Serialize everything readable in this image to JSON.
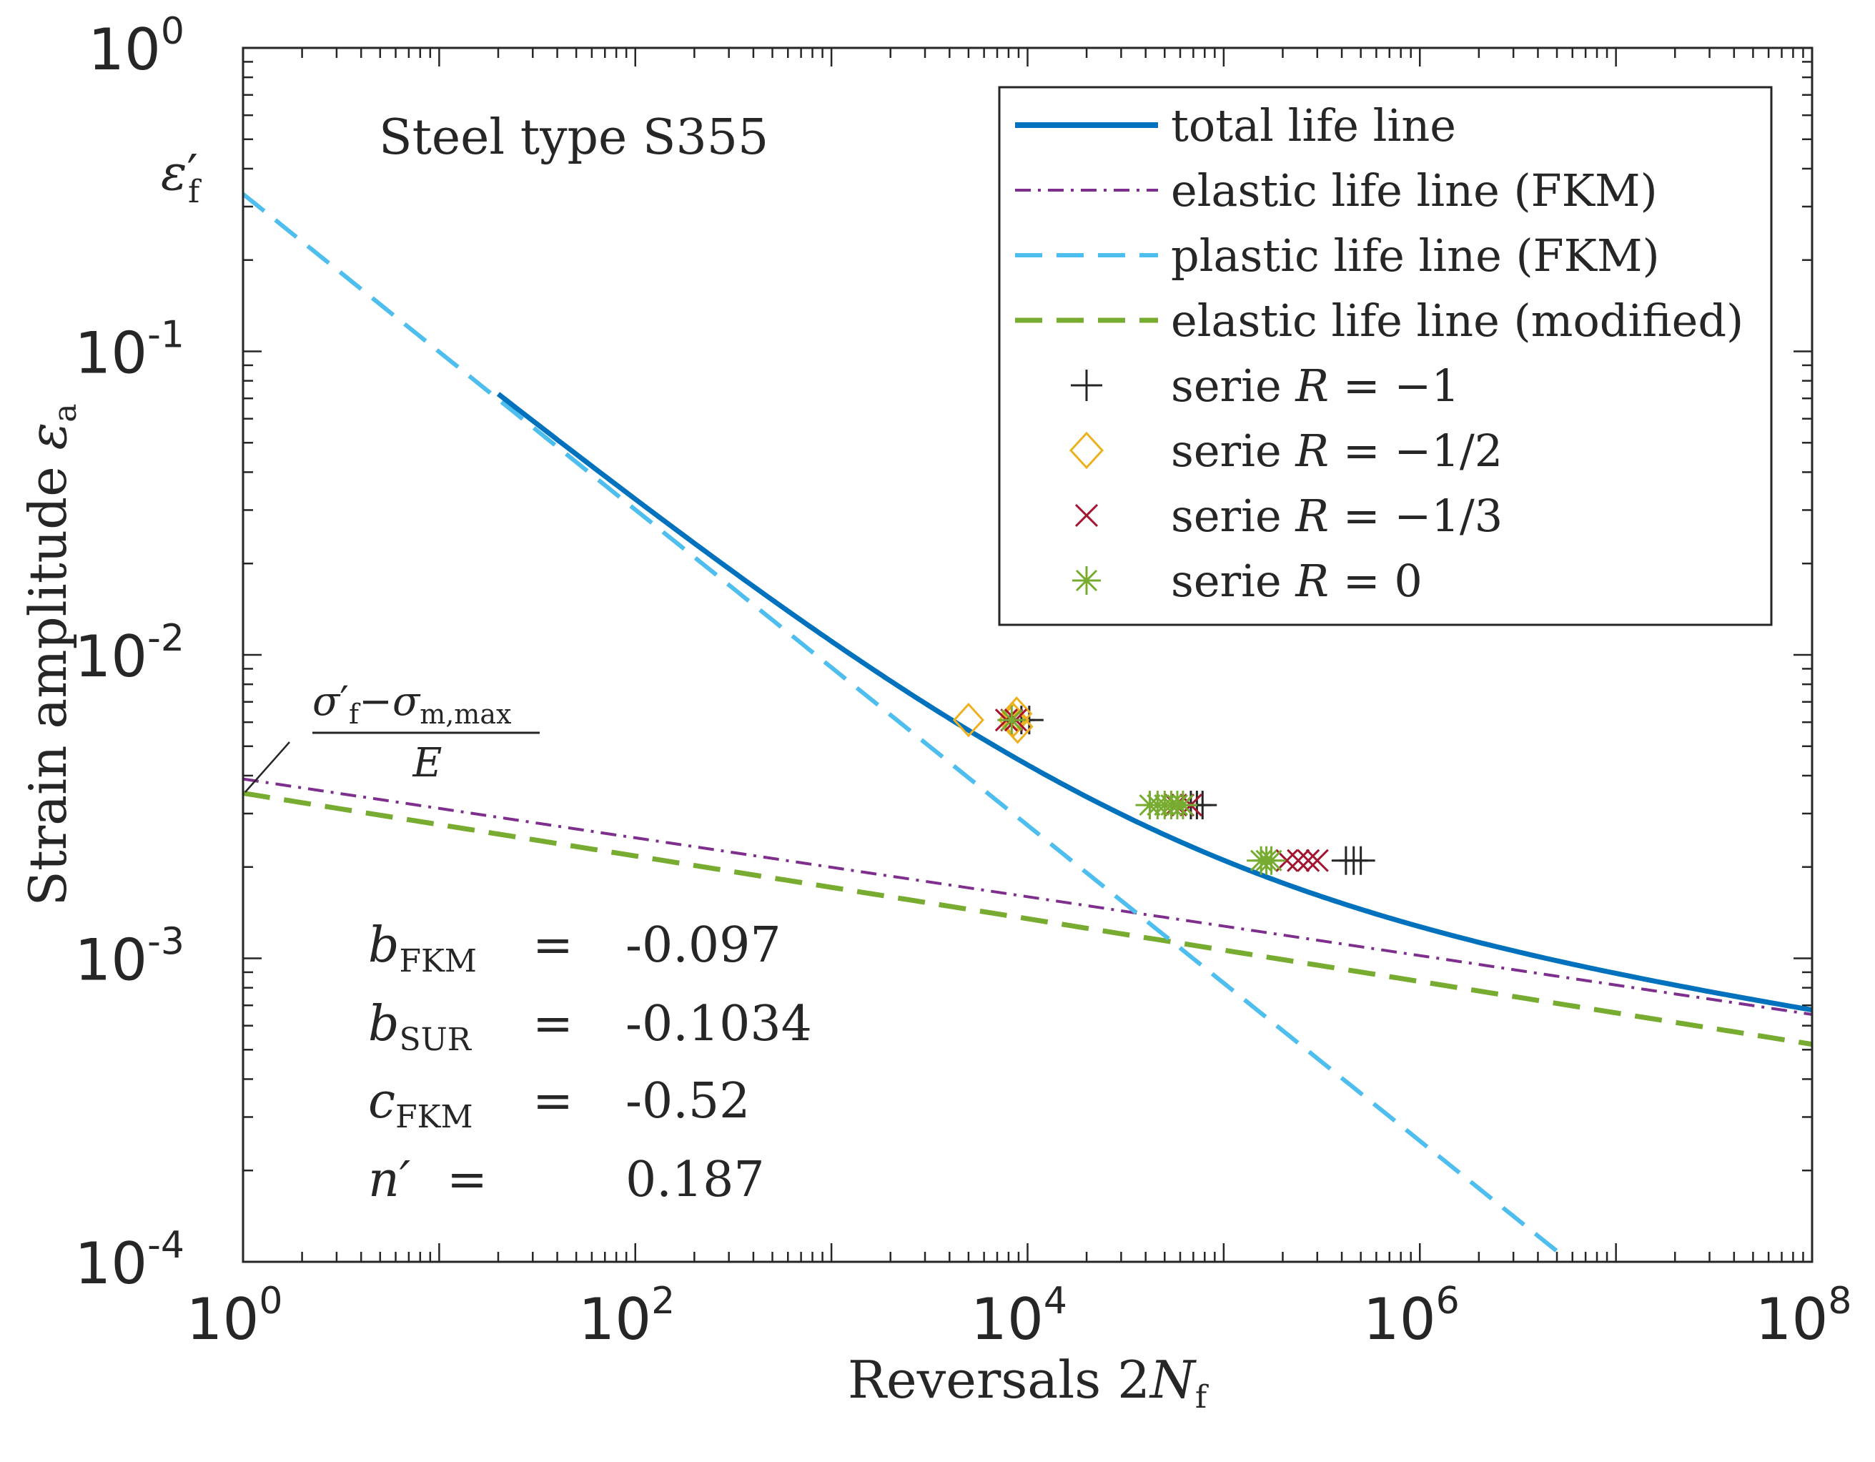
{
  "chart_data": {
    "type": "line",
    "scale": "log-log",
    "xlabel": "Reversals 2N_f",
    "xlabel_text": "Reversals 2",
    "xlabel_var": "N",
    "xlabel_sub": "f",
    "ylabel": "Strain amplitude ε_a",
    "ylabel_text": "Strain amplitude ",
    "ylabel_var": "ε",
    "ylabel_sub": "a",
    "xlim": [
      1,
      100000000
    ],
    "ylim": [
      0.0001,
      1
    ],
    "x_ticks": [
      {
        "value": 1,
        "base": "10",
        "exp": "0"
      },
      {
        "value": 100,
        "base": "10",
        "exp": "2"
      },
      {
        "value": 10000,
        "base": "10",
        "exp": "4"
      },
      {
        "value": 1000000,
        "base": "10",
        "exp": "6"
      },
      {
        "value": 100000000,
        "base": "10",
        "exp": "8"
      }
    ],
    "y_ticks": [
      {
        "value": 1,
        "base": "10",
        "exp": "0"
      },
      {
        "value": 0.1,
        "base": "10",
        "exp": "-1"
      },
      {
        "value": 0.01,
        "base": "10",
        "exp": "-2"
      },
      {
        "value": 0.001,
        "base": "10",
        "exp": "-3"
      },
      {
        "value": 0.0001,
        "base": "10",
        "exp": "-4"
      }
    ],
    "title_annotation": "Steel type S355",
    "eps_f_label": {
      "symbol": "ε",
      "prime": "′",
      "sub": "f",
      "value": 0.33
    },
    "intercept_label": {
      "sigma": "σ",
      "prime": "′",
      "sub_f": "f",
      "minus": "−",
      "sigma2": "σ",
      "sub_m": "m,max",
      "denominator": "E",
      "value": 0.0035
    },
    "params": [
      {
        "symbol": "b",
        "sub": "FKM",
        "eq": "=",
        "value": "-0.097"
      },
      {
        "symbol": "b",
        "sub": "SUR",
        "eq": "=",
        "value": "-0.1034"
      },
      {
        "symbol": "c",
        "sub": "FKM",
        "eq": "=",
        "value": "-0.52"
      },
      {
        "symbol": "n′",
        "sub": "",
        "eq": "=",
        "value": "0.187"
      }
    ],
    "lines": [
      {
        "name": "total life line",
        "color": "#0072BD",
        "style": "solid",
        "x_range": [
          20,
          100000000
        ],
        "components": [
          {
            "coef": 0.0039,
            "exp": -0.097
          },
          {
            "coef": 0.33,
            "exp": -0.52
          }
        ]
      },
      {
        "name": "elastic life line (FKM)",
        "color": "#7E2F8E",
        "style": "dashdot",
        "x_range": [
          1,
          100000000
        ],
        "components": [
          {
            "coef": 0.0039,
            "exp": -0.097
          }
        ]
      },
      {
        "name": "plastic life line (FKM)",
        "color": "#4DBEEE",
        "style": "dashed",
        "x_range": [
          1,
          5600000
        ],
        "components": [
          {
            "coef": 0.33,
            "exp": -0.52
          }
        ]
      },
      {
        "name": "elastic life line (modified)",
        "color": "#77AC30",
        "style": "dashed",
        "x_range": [
          1,
          100000000
        ],
        "components": [
          {
            "coef": 0.0035,
            "exp": -0.1034
          }
        ]
      }
    ],
    "series": [
      {
        "name": "serie R = −1",
        "label_text": "serie ",
        "label_var": "R",
        "label_rest": " = −1",
        "marker": "plus",
        "color": "#262626",
        "points": [
          [
            9300,
            0.0061
          ],
          [
            10200,
            0.0061
          ],
          [
            68000,
            0.0032
          ],
          [
            73000,
            0.0032
          ],
          [
            78000,
            0.0032
          ],
          [
            420000,
            0.0021
          ],
          [
            460000,
            0.0021
          ],
          [
            500000,
            0.0021
          ]
        ]
      },
      {
        "name": "serie R = −1/2",
        "label_text": "serie ",
        "label_var": "R",
        "label_rest": " = −1/2",
        "marker": "diamond",
        "color": "#EDB120",
        "points": [
          [
            5000,
            0.0061
          ],
          [
            8500,
            0.0061
          ],
          [
            8800,
            0.0064
          ],
          [
            8900,
            0.0058
          ]
        ]
      },
      {
        "name": "serie R = −1/3",
        "label_text": "serie ",
        "label_var": "R",
        "label_rest": " = −1/3",
        "marker": "cross",
        "color": "#A2142F",
        "points": [
          [
            7800,
            0.0061
          ],
          [
            8300,
            0.0061
          ],
          [
            8700,
            0.0061
          ],
          [
            57000,
            0.0032
          ],
          [
            62000,
            0.0032
          ],
          [
            68000,
            0.0032
          ],
          [
            210000,
            0.0021
          ],
          [
            240000,
            0.0021
          ],
          [
            270000,
            0.0021
          ],
          [
            300000,
            0.0021
          ]
        ]
      },
      {
        "name": "serie R = 0",
        "label_text": "serie ",
        "label_var": "R",
        "label_rest": " = 0",
        "marker": "asterisk",
        "color": "#77AC30",
        "points": [
          [
            8300,
            0.0061
          ],
          [
            42000,
            0.0032
          ],
          [
            46000,
            0.0032
          ],
          [
            50000,
            0.0032
          ],
          [
            54000,
            0.0032
          ],
          [
            58000,
            0.0032
          ],
          [
            62000,
            0.0032
          ],
          [
            155000,
            0.0021
          ],
          [
            165000,
            0.0021
          ],
          [
            175000,
            0.0021
          ]
        ]
      }
    ]
  }
}
